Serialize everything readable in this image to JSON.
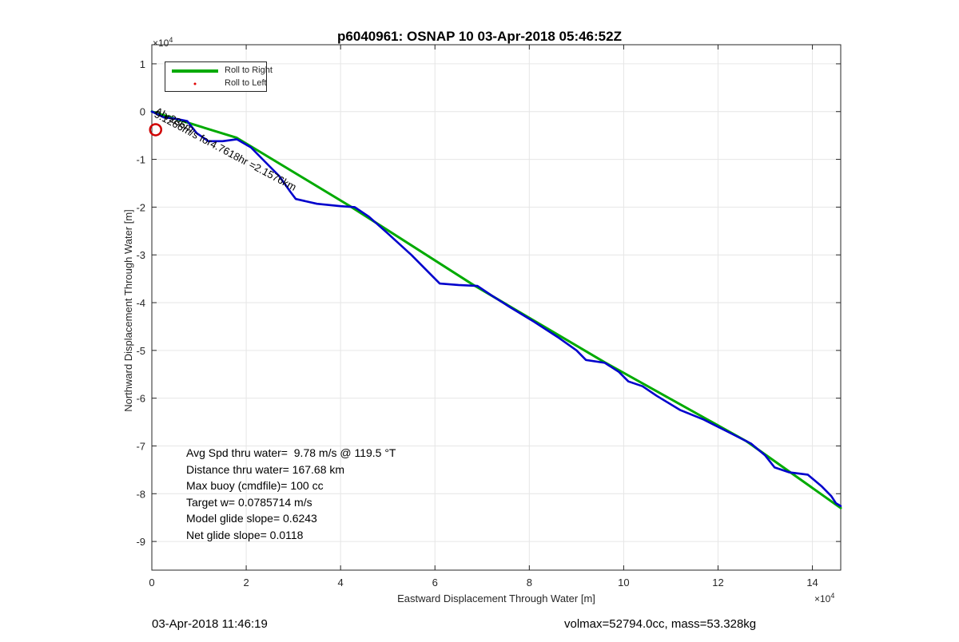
{
  "chart_data": {
    "type": "line",
    "title": "p6040961: OSNAP 10 03-Apr-2018 05:46:52Z",
    "xlabel": "Eastward Displacement Through Water [m]",
    "ylabel": "Northward Displacement Through Water [m]",
    "xlim": [
      0,
      14.6
    ],
    "ylim": [
      -9.6,
      1.4
    ],
    "x_exponent_label": "×10",
    "y_exponent_label": "×10",
    "exponent": "4",
    "xticks": [
      "0",
      "2",
      "4",
      "6",
      "8",
      "10",
      "12",
      "14"
    ],
    "yticks": [
      "1",
      "0",
      "-1",
      "-2",
      "-3",
      "-4",
      "-5",
      "-6",
      "-7",
      "-8",
      "-9"
    ],
    "grid": true,
    "legend_position": "top-left",
    "legend": [
      "Roll to Right",
      "Roll to Left"
    ],
    "series": [
      {
        "name": "Roll to Right",
        "color": "#00aa00",
        "points": [
          [
            0,
            0
          ],
          [
            1.8,
            -0.55
          ],
          [
            4.2,
            -1.98
          ],
          [
            6.8,
            -3.62
          ],
          [
            9.6,
            -5.25
          ],
          [
            12.6,
            -6.9
          ],
          [
            14.6,
            -8.3
          ]
        ]
      },
      {
        "name": "Roll to Left",
        "color": "#e00000",
        "points": []
      },
      {
        "name": "",
        "color": "#0000cc",
        "points": [
          [
            0,
            0
          ],
          [
            0.25,
            -0.12
          ],
          [
            0.5,
            -0.15
          ],
          [
            0.75,
            -0.2
          ],
          [
            0.95,
            -0.45
          ],
          [
            1.2,
            -0.62
          ],
          [
            1.5,
            -0.62
          ],
          [
            1.8,
            -0.58
          ],
          [
            2.1,
            -0.75
          ],
          [
            2.4,
            -1.05
          ],
          [
            2.7,
            -1.35
          ],
          [
            2.95,
            -1.7
          ],
          [
            3.05,
            -1.83
          ],
          [
            3.5,
            -1.93
          ],
          [
            4.0,
            -1.98
          ],
          [
            4.3,
            -2.0
          ],
          [
            4.6,
            -2.2
          ],
          [
            5.0,
            -2.55
          ],
          [
            5.5,
            -3.0
          ],
          [
            5.9,
            -3.4
          ],
          [
            6.1,
            -3.6
          ],
          [
            6.5,
            -3.63
          ],
          [
            6.9,
            -3.65
          ],
          [
            7.2,
            -3.85
          ],
          [
            7.6,
            -4.1
          ],
          [
            8.1,
            -4.4
          ],
          [
            8.6,
            -4.72
          ],
          [
            9.0,
            -5.0
          ],
          [
            9.2,
            -5.2
          ],
          [
            9.6,
            -5.26
          ],
          [
            9.9,
            -5.45
          ],
          [
            10.1,
            -5.65
          ],
          [
            10.4,
            -5.75
          ],
          [
            10.7,
            -5.95
          ],
          [
            11.2,
            -6.25
          ],
          [
            11.7,
            -6.45
          ],
          [
            12.2,
            -6.7
          ],
          [
            12.7,
            -6.95
          ],
          [
            13.0,
            -7.2
          ],
          [
            13.2,
            -7.45
          ],
          [
            13.5,
            -7.55
          ],
          [
            13.9,
            -7.6
          ],
          [
            14.2,
            -7.85
          ],
          [
            14.4,
            -8.05
          ],
          [
            14.5,
            -8.2
          ],
          [
            14.6,
            -8.26
          ]
        ]
      }
    ],
    "start_marker": {
      "x": 0.08,
      "y": -0.38,
      "color": "#d00000"
    },
    "annotation": "9.1266m/s for4.7618hr =2.1576km",
    "annotation_overlap": "Ahr286m"
  },
  "stats": [
    "Avg Spd thru water=  9.78 m/s @ 119.5 °T",
    "Distance thru water= 167.68 km",
    "Max buoy (cmdfile)= 100 cc",
    "Target w= 0.0785714 m/s",
    "Model glide slope= 0.6243",
    "Net glide slope= 0.0118"
  ],
  "footer_left": "03-Apr-2018 11:46:19",
  "footer_right": "volmax=52794.0cc, mass=53.328kg"
}
